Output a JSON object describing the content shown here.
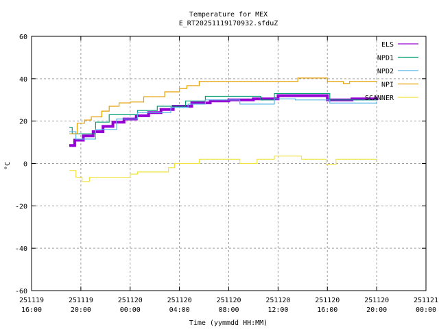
{
  "chart_data": {
    "type": "line",
    "title": "Temperature for MEX",
    "subtitle": "E_RT20251119170932.sfduZ",
    "xlabel": "Time (yymmdd HH:MM)",
    "ylabel": "°C",
    "ylim": [
      -60,
      60
    ],
    "xlim_hours_from_start": [
      0,
      32
    ],
    "grid": true,
    "legend_position": "top-right",
    "y_ticks": [
      "-60",
      "-40",
      "-20",
      "0",
      "20",
      "40",
      "60"
    ],
    "x_ticks": [
      {
        "date": "251119",
        "time": "16:00"
      },
      {
        "date": "251119",
        "time": "20:00"
      },
      {
        "date": "251120",
        "time": "00:00"
      },
      {
        "date": "251120",
        "time": "04:00"
      },
      {
        "date": "251120",
        "time": "08:00"
      },
      {
        "date": "251120",
        "time": "12:00"
      },
      {
        "date": "251120",
        "time": "16:00"
      },
      {
        "date": "251120",
        "time": "20:00"
      },
      {
        "date": "251121",
        "time": "00:00"
      }
    ],
    "series": [
      {
        "name": "ELS",
        "color": "#9400d3",
        "width": 4,
        "x": [
          3.06,
          3.5,
          4.2,
          5,
          5.8,
          6.6,
          7.5,
          8.5,
          9.5,
          10.5,
          11.5,
          13,
          14.5,
          16,
          18,
          20,
          22,
          24,
          26,
          28
        ],
        "y": [
          8.5,
          11,
          13,
          15,
          17.5,
          19.5,
          21,
          22.5,
          24,
          25.5,
          27,
          28.6,
          29.5,
          30,
          30.5,
          32,
          32,
          30,
          30.5,
          31
        ]
      },
      {
        "name": "NPD1",
        "color": "#009e73",
        "width": 1.2,
        "x": [
          3.06,
          3.3,
          5.2,
          6.3,
          8.6,
          10.2,
          12.5,
          14.1,
          18.6,
          19.7,
          24.2,
          28
        ],
        "y": [
          17,
          14,
          19.5,
          23,
          25,
          27,
          29.5,
          31.7,
          30,
          33,
          30,
          30
        ]
      },
      {
        "name": "NPD2",
        "color": "#56b4e9",
        "width": 1.2,
        "x": [
          3.06,
          3.6,
          5.2,
          6.9,
          8.6,
          11.3,
          12.7,
          14.1,
          16.9,
          19.7,
          21.4,
          24.2,
          28
        ],
        "y": [
          15,
          11.5,
          16,
          21,
          24,
          26.5,
          28,
          30,
          28,
          30.5,
          30,
          28.5,
          29
        ]
      },
      {
        "name": "NPI",
        "color": "#e69f00",
        "width": 1.2,
        "x": [
          3.06,
          3.7,
          4.3,
          4.85,
          5.7,
          6.3,
          7.1,
          8,
          9.1,
          10.8,
          12,
          12.6,
          13.6,
          21.6,
          24,
          25.3,
          25.8,
          28
        ],
        "y": [
          14,
          19,
          20.5,
          22,
          24.7,
          27,
          28.6,
          29,
          31.5,
          33.8,
          35.4,
          36.7,
          38.7,
          40.3,
          38.7,
          37.7,
          38.7,
          38.7
        ]
      },
      {
        "name": "SCANNER",
        "color": "#f0e442",
        "width": 1.2,
        "x": [
          3.06,
          3.6,
          4.1,
          4.7,
          8,
          8.6,
          11.1,
          11.6,
          13.6,
          16.9,
          18.3,
          19.7,
          21.9,
          23.9,
          24.7,
          28
        ],
        "y": [
          -3.3,
          -6.5,
          -8.5,
          -6.5,
          -5,
          -4,
          -2,
          0,
          2,
          0,
          2,
          3.5,
          2,
          -0.5,
          2,
          2
        ]
      }
    ]
  }
}
